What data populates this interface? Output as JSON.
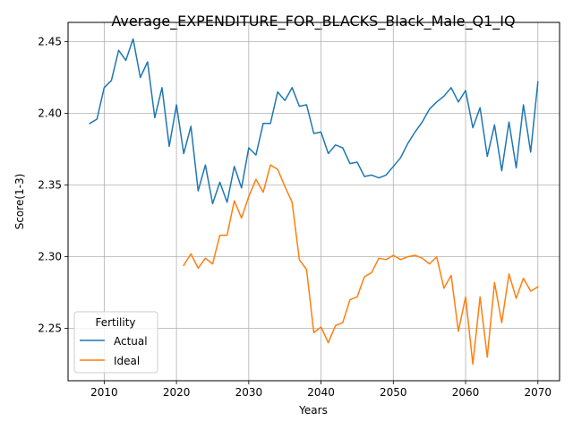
{
  "chart_data": {
    "type": "line",
    "title": "Average_EXPENDITURE_FOR_BLACKS_Black_Male_Q1_IQ",
    "xlabel": "Years",
    "ylabel": "Score(1-3)",
    "xlim": [
      2005,
      2073
    ],
    "ylim": [
      2.2135,
      2.4635
    ],
    "xticks": [
      2010,
      2020,
      2030,
      2040,
      2050,
      2060,
      2070
    ],
    "yticks": [
      2.25,
      2.3,
      2.35,
      2.4,
      2.45
    ],
    "ytick_labels": [
      "2.25",
      "2.30",
      "2.35",
      "2.40",
      "2.45"
    ],
    "grid": true,
    "legend": {
      "title": "Fertility",
      "placement": "lower-left"
    },
    "series": [
      {
        "name": "Actual",
        "color": "#1f77b4",
        "x": [
          2008,
          2009,
          2010,
          2011,
          2012,
          2013,
          2014,
          2015,
          2016,
          2017,
          2018,
          2019,
          2020,
          2021,
          2022,
          2023,
          2024,
          2025,
          2026,
          2027,
          2028,
          2029,
          2030,
          2031,
          2032,
          2033,
          2034,
          2035,
          2036,
          2037,
          2038,
          2039,
          2040,
          2041,
          2042,
          2043,
          2044,
          2045,
          2046,
          2047,
          2048,
          2049,
          2050,
          2051,
          2052,
          2053,
          2054,
          2055,
          2056,
          2057,
          2058,
          2059,
          2060,
          2061,
          2062,
          2063,
          2064,
          2065,
          2066,
          2067,
          2068,
          2069,
          2070
        ],
        "y": [
          2.393,
          2.396,
          2.418,
          2.423,
          2.444,
          2.437,
          2.452,
          2.425,
          2.436,
          2.397,
          2.418,
          2.377,
          2.406,
          2.372,
          2.391,
          2.346,
          2.364,
          2.337,
          2.352,
          2.338,
          2.363,
          2.348,
          2.376,
          2.371,
          2.393,
          2.393,
          2.415,
          2.409,
          2.418,
          2.405,
          2.406,
          2.386,
          2.387,
          2.372,
          2.378,
          2.376,
          2.365,
          2.366,
          2.356,
          2.357,
          2.355,
          2.357,
          2.363,
          2.369,
          2.379,
          2.387,
          2.394,
          2.403,
          2.408,
          2.412,
          2.418,
          2.408,
          2.416,
          2.39,
          2.404,
          2.37,
          2.392,
          2.36,
          2.394,
          2.362,
          2.406,
          2.373,
          2.422
        ]
      },
      {
        "name": "Ideal",
        "color": "#ff7f0e",
        "x": [
          2021,
          2022,
          2023,
          2024,
          2025,
          2026,
          2027,
          2028,
          2029,
          2030,
          2031,
          2032,
          2033,
          2034,
          2035,
          2036,
          2037,
          2038,
          2039,
          2040,
          2041,
          2042,
          2043,
          2044,
          2045,
          2046,
          2047,
          2048,
          2049,
          2050,
          2051,
          2052,
          2053,
          2054,
          2055,
          2056,
          2057,
          2058,
          2059,
          2060,
          2061,
          2062,
          2063,
          2064,
          2065,
          2066,
          2067,
          2068,
          2069,
          2070
        ],
        "y": [
          2.294,
          2.302,
          2.292,
          2.299,
          2.295,
          2.315,
          2.315,
          2.339,
          2.327,
          2.342,
          2.354,
          2.345,
          2.364,
          2.361,
          2.349,
          2.338,
          2.298,
          2.291,
          2.247,
          2.251,
          2.24,
          2.252,
          2.254,
          2.27,
          2.272,
          2.286,
          2.289,
          2.299,
          2.298,
          2.301,
          2.298,
          2.3,
          2.301,
          2.299,
          2.295,
          2.3,
          2.278,
          2.287,
          2.248,
          2.272,
          2.225,
          2.272,
          2.23,
          2.282,
          2.254,
          2.288,
          2.271,
          2.285,
          2.276,
          2.279
        ]
      }
    ]
  }
}
